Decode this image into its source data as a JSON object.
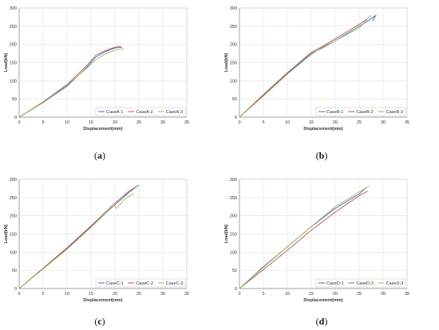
{
  "figure": {
    "panel_labels": [
      "a",
      "b",
      "c",
      "d"
    ]
  },
  "chart_data": [
    {
      "type": "line",
      "xlabel": "Displacement(mm)",
      "ylabel": "Load(kN)",
      "xlim": [
        0,
        35
      ],
      "ylim": [
        0,
        300
      ],
      "xticks": [
        0,
        5,
        10,
        15,
        20,
        25,
        30,
        35
      ],
      "yticks": [
        0,
        50,
        100,
        150,
        200,
        250,
        300
      ],
      "grid": true,
      "legend_position": "bottom-right",
      "series": [
        {
          "name": "CaseA-1",
          "color": "#3b6cc8",
          "x": [
            0,
            5,
            10,
            14,
            16,
            18,
            20,
            21.5
          ],
          "y": [
            0,
            40,
            85,
            135,
            165,
            180,
            190,
            192
          ]
        },
        {
          "name": "CaseA-2",
          "color": "#c0504d",
          "x": [
            0,
            5,
            10,
            14,
            16,
            18,
            20,
            21.3
          ],
          "y": [
            0,
            42,
            90,
            140,
            170,
            183,
            192,
            195
          ]
        },
        {
          "name": "CaseA-3",
          "color": "#9bbb59",
          "x": [
            0,
            5,
            10,
            14,
            16,
            18,
            20,
            21.8
          ],
          "y": [
            0,
            40,
            88,
            133,
            158,
            174,
            184,
            188
          ]
        }
      ]
    },
    {
      "type": "line",
      "xlabel": "Displacement(mm)",
      "ylabel": "Load(kN)",
      "xlim": [
        0,
        35
      ],
      "ylim": [
        0,
        300
      ],
      "xticks": [
        0,
        5,
        10,
        15,
        20,
        25,
        30,
        35
      ],
      "yticks": [
        0,
        50,
        100,
        150,
        200,
        250,
        300
      ],
      "grid": true,
      "legend_position": "bottom-right",
      "series": [
        {
          "name": "CaseB-1",
          "color": "#3b6cc8",
          "x": [
            0,
            5,
            10,
            15,
            17,
            18,
            20,
            25,
            27.5,
            28.5,
            27.8
          ],
          "y": [
            0,
            60,
            120,
            175,
            188,
            195,
            210,
            250,
            270,
            280,
            265
          ]
        },
        {
          "name": "CaseB-2",
          "color": "#c0504d",
          "x": [
            0,
            5,
            10,
            15,
            17,
            20,
            25,
            27
          ],
          "y": [
            0,
            62,
            122,
            178,
            192,
            215,
            255,
            272
          ]
        },
        {
          "name": "CaseB-3",
          "color": "#9bbb59",
          "x": [
            0,
            5,
            10,
            15,
            17,
            20,
            25,
            27.5
          ],
          "y": [
            0,
            58,
            118,
            172,
            190,
            210,
            245,
            280
          ]
        }
      ]
    },
    {
      "type": "line",
      "xlabel": "Displacement(mm)",
      "ylabel": "Load(kN)",
      "xlim": [
        0,
        35
      ],
      "ylim": [
        0,
        300
      ],
      "xticks": [
        0,
        5,
        10,
        15,
        20,
        25,
        30,
        35
      ],
      "yticks": [
        0,
        50,
        100,
        150,
        200,
        250,
        300
      ],
      "grid": true,
      "legend_position": "bottom-right",
      "series": [
        {
          "name": "CaseC-1",
          "color": "#3b6cc8",
          "x": [
            0,
            5,
            10,
            15,
            20,
            23,
            25
          ],
          "y": [
            0,
            55,
            110,
            170,
            230,
            265,
            285
          ]
        },
        {
          "name": "CaseC-2",
          "color": "#c0504d",
          "x": [
            0,
            5,
            10,
            15,
            20,
            23,
            24.5
          ],
          "y": [
            0,
            56,
            112,
            172,
            235,
            268,
            280
          ]
        },
        {
          "name": "CaseC-3",
          "color": "#9bbb59",
          "x": [
            0,
            5,
            10,
            15,
            19.5,
            20,
            20.3,
            22,
            24
          ],
          "y": [
            0,
            54,
            108,
            168,
            225,
            228,
            220,
            245,
            262
          ]
        }
      ]
    },
    {
      "type": "line",
      "xlabel": "Displacement(mm)",
      "ylabel": "Load(kN)",
      "xlim": [
        0,
        35
      ],
      "ylim": [
        0,
        300
      ],
      "xticks": [
        0,
        5,
        10,
        15,
        20,
        25,
        30,
        35
      ],
      "yticks": [
        0,
        50,
        100,
        150,
        200,
        250,
        300
      ],
      "grid": true,
      "legend_position": "bottom-right",
      "series": [
        {
          "name": "CaseD-1",
          "color": "#3b6cc8",
          "x": [
            0,
            5,
            10,
            15,
            20,
            25,
            26.5
          ],
          "y": [
            0,
            60,
            115,
            170,
            220,
            260,
            278
          ]
        },
        {
          "name": "CaseD-2",
          "color": "#c0504d",
          "x": [
            0,
            5,
            10,
            15,
            20,
            25,
            26.8
          ],
          "y": [
            0,
            52,
            105,
            160,
            210,
            255,
            268
          ]
        },
        {
          "name": "CaseD-3",
          "color": "#9bbb59",
          "x": [
            0,
            5,
            10,
            15,
            20,
            25,
            27
          ],
          "y": [
            0,
            58,
            115,
            170,
            225,
            265,
            282
          ]
        }
      ]
    }
  ]
}
